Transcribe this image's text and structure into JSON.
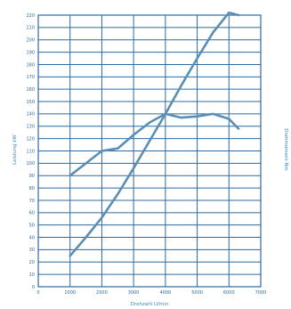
{
  "chart_data": {
    "type": "line",
    "title": "",
    "xlabel": "Drehzahl U/min",
    "ylabel_left": "Leistung kW",
    "ylabel_right": "Drehmoment Nm",
    "xlim": [
      0,
      7000
    ],
    "ylim": [
      0,
      220
    ],
    "x_ticks": [
      0,
      1000,
      2000,
      3000,
      4000,
      5000,
      6000,
      7000
    ],
    "y_ticks": [
      0,
      10,
      20,
      30,
      40,
      50,
      60,
      70,
      80,
      90,
      100,
      110,
      120,
      130,
      140,
      150,
      160,
      170,
      180,
      190,
      200,
      210,
      220
    ],
    "grid": true,
    "legend": "none",
    "series": [
      {
        "color": "#5b8eb3",
        "x": [
          1000,
          1500,
          2000,
          2500,
          3000,
          3500,
          4000,
          4500,
          5000,
          5500,
          6000,
          6300
        ],
        "values": [
          25,
          40,
          56,
          75,
          96,
          118,
          140,
          163,
          185,
          206,
          222,
          220
        ]
      },
      {
        "color": "#5b8eb3",
        "x": [
          1000,
          1500,
          2000,
          2500,
          3000,
          3500,
          4000,
          4500,
          5000,
          5500,
          6000,
          6300
        ],
        "values": [
          90,
          100,
          110,
          112,
          123,
          133,
          140,
          137,
          138,
          140,
          136,
          128
        ]
      }
    ]
  }
}
